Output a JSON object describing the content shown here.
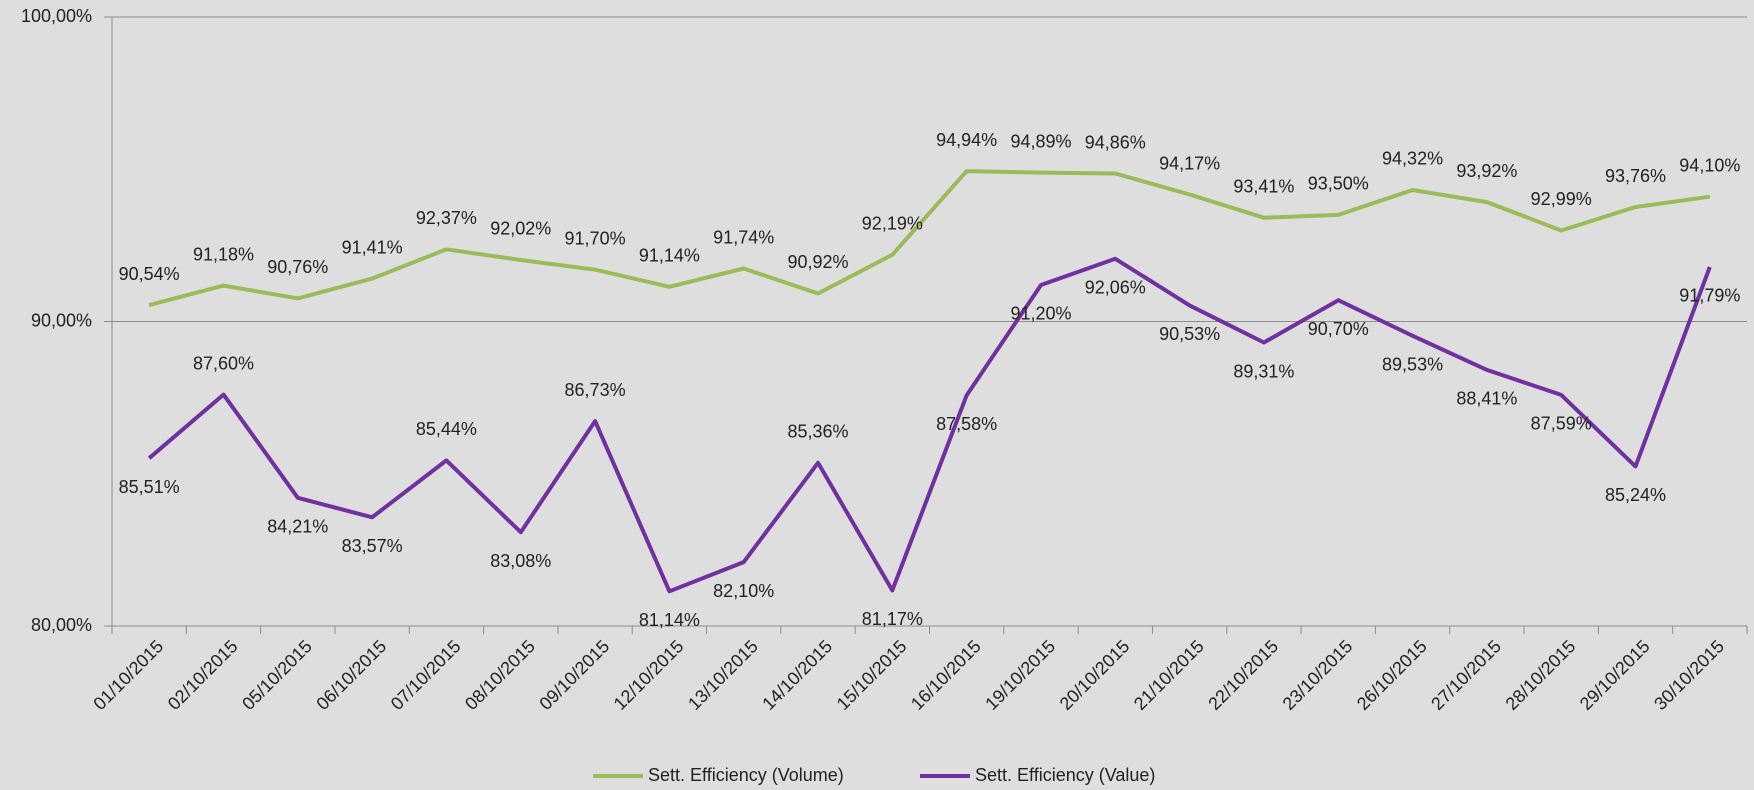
{
  "chart_data": {
    "type": "line",
    "categories": [
      "01/10/2015",
      "02/10/2015",
      "05/10/2015",
      "06/10/2015",
      "07/10/2015",
      "08/10/2015",
      "09/10/2015",
      "12/10/2015",
      "13/10/2015",
      "14/10/2015",
      "15/10/2015",
      "16/10/2015",
      "19/10/2015",
      "20/10/2015",
      "21/10/2015",
      "22/10/2015",
      "23/10/2015",
      "26/10/2015",
      "27/10/2015",
      "28/10/2015",
      "29/10/2015",
      "30/10/2015"
    ],
    "series": [
      {
        "name": "Sett. Efficiency (Volume)",
        "color": "#9bbb59",
        "values": [
          90.54,
          91.18,
          90.76,
          91.41,
          92.37,
          92.02,
          91.7,
          91.14,
          91.74,
          90.92,
          92.19,
          94.94,
          94.89,
          94.86,
          94.17,
          93.41,
          93.5,
          94.32,
          93.92,
          92.99,
          93.76,
          94.1
        ],
        "value_labels": [
          "90,54%",
          "91,18%",
          "90,76%",
          "91,41%",
          "92,37%",
          "92,02%",
          "91,70%",
          "91,14%",
          "91,74%",
          "90,92%",
          "92,19%",
          "94,94%",
          "94,89%",
          "94,86%",
          "94,17%",
          "93,41%",
          "93,50%",
          "94,32%",
          "93,92%",
          "92,99%",
          "93,76%",
          "94,10%"
        ]
      },
      {
        "name": "Sett. Efficiency (Value)",
        "color": "#7030a0",
        "values": [
          85.51,
          87.6,
          84.21,
          83.57,
          85.44,
          83.08,
          86.73,
          81.14,
          82.1,
          85.36,
          81.17,
          87.58,
          91.2,
          92.06,
          90.53,
          89.31,
          90.7,
          89.53,
          88.41,
          87.59,
          85.24,
          91.79
        ],
        "value_labels": [
          "85,51%",
          "87,60%",
          "84,21%",
          "83,57%",
          "85,44%",
          "83,08%",
          "86,73%",
          "81,14%",
          "82,10%",
          "85,36%",
          "81,17%",
          "87,58%",
          "91,20%",
          "92,06%",
          "90,53%",
          "89,31%",
          "90,70%",
          "89,53%",
          "88,41%",
          "87,59%",
          "85,24%",
          "91,79%"
        ]
      }
    ],
    "ylim": [
      80,
      100
    ],
    "yticks": [
      {
        "value": 80,
        "label": "80,00%"
      },
      {
        "value": 90,
        "label": "90,00%"
      },
      {
        "value": 100,
        "label": "100,00%"
      }
    ],
    "grid": true,
    "legend": "bottom"
  }
}
